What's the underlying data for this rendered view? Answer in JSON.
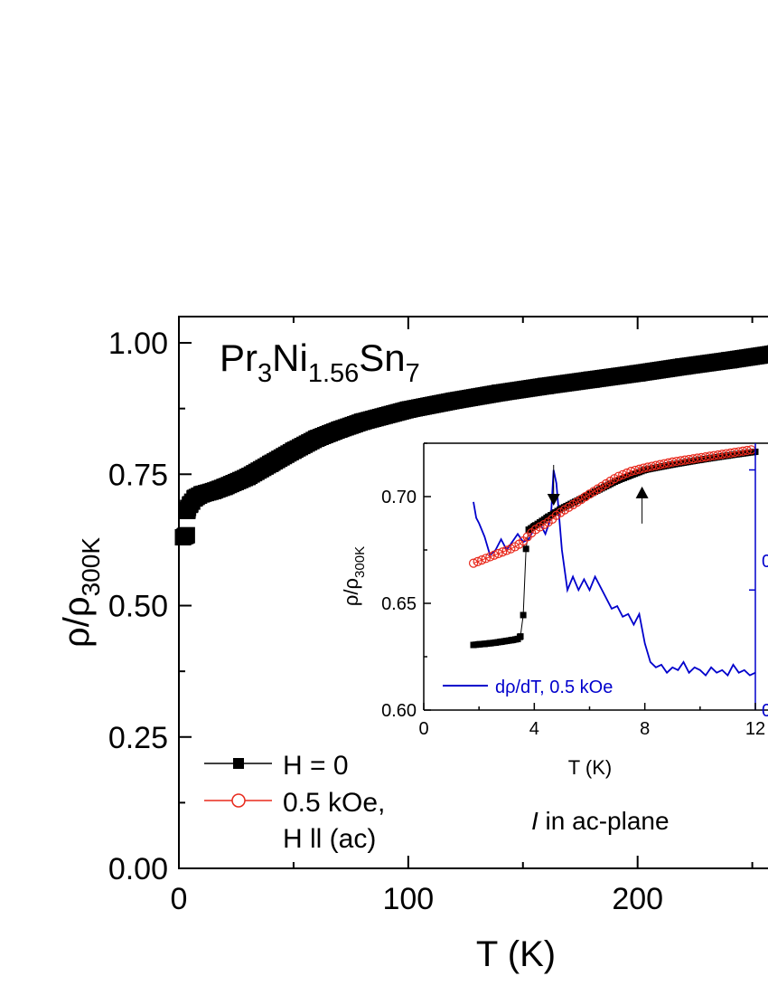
{
  "chart_data": [
    {
      "type": "scatter",
      "title": "Pr3Ni1.56Sn7",
      "title_parts": {
        "base1": "Pr",
        "sub1": "3",
        "base2": "Ni",
        "sub2": "1.56",
        "base3": "Sn",
        "sub3": "7"
      },
      "xlabel": "T (K)",
      "ylabel": {
        "base": "ρ/ρ",
        "sub": "300K"
      },
      "xlim": [
        0,
        260
      ],
      "ylim": [
        0,
        1.05
      ],
      "x_ticks": [
        0,
        100,
        200
      ],
      "y_ticks": [
        "0.00",
        "0.25",
        "0.50",
        "0.75",
        "1.00"
      ],
      "grid": false,
      "legend": {
        "position": "bottom-left",
        "entries": [
          "H = 0",
          "0.5 kOe,",
          "H ll (ac)"
        ]
      },
      "annotation": {
        "italic": "I",
        "rest": " in ac-plane"
      },
      "series": [
        {
          "name": "H = 0",
          "color": "#000000",
          "marker": "square-filled",
          "x": [
            1.8,
            2.5,
            3.0,
            3.5,
            3.7,
            4.0,
            5.0,
            7.0,
            10,
            15,
            20,
            30,
            40,
            50,
            60,
            70,
            80,
            100,
            120,
            140,
            160,
            180,
            200,
            220,
            240,
            260
          ],
          "y": [
            0.63,
            0.632,
            0.633,
            0.634,
            0.68,
            0.686,
            0.693,
            0.705,
            0.712,
            0.718,
            0.726,
            0.745,
            0.77,
            0.795,
            0.818,
            0.835,
            0.85,
            0.873,
            0.89,
            0.905,
            0.918,
            0.93,
            0.942,
            0.955,
            0.967,
            0.98
          ]
        }
      ]
    },
    {
      "type": "line",
      "inset": true,
      "xlabel": "T (K)",
      "ylabel": {
        "base": "ρ/ρ",
        "sub": "300K"
      },
      "xlim": [
        0,
        12
      ],
      "ylim": [
        0.6,
        0.725
      ],
      "x_ticks": [
        0,
        4,
        8,
        12
      ],
      "y_ticks": [
        "0.60",
        "0.65",
        "0.70"
      ],
      "right_axis_color": "#0000cc",
      "right_tick_labels": [
        "0",
        "0"
      ],
      "series": [
        {
          "name": "H = 0",
          "color": "#000000",
          "marker": "square-filled",
          "x": [
            1.8,
            2.0,
            2.2,
            2.4,
            2.6,
            2.8,
            3.0,
            3.2,
            3.4,
            3.5,
            3.6,
            3.7,
            3.8,
            4.0,
            4.5,
            5.0,
            6.0,
            7.0,
            8.0,
            9.0,
            10.0,
            11.0,
            12.0
          ],
          "y": [
            0.6305,
            0.6308,
            0.631,
            0.6313,
            0.6316,
            0.632,
            0.6324,
            0.6328,
            0.6333,
            0.6345,
            0.6445,
            0.6755,
            0.6845,
            0.6862,
            0.6905,
            0.6945,
            0.701,
            0.7075,
            0.7125,
            0.715,
            0.7172,
            0.7192,
            0.721
          ]
        },
        {
          "name": "0.5 kOe, H ll (ac)",
          "color": "#e8291c",
          "marker": "circle-open",
          "x": [
            1.8,
            2.0,
            2.2,
            2.4,
            2.6,
            2.8,
            3.0,
            3.2,
            3.4,
            3.6,
            3.8,
            4.0,
            4.2,
            4.4,
            4.6,
            4.8,
            5.0,
            5.5,
            6.0,
            6.5,
            7.0,
            7.5,
            8.0,
            9.0,
            10.0,
            11.0,
            12.0
          ],
          "y": [
            0.6688,
            0.6698,
            0.6708,
            0.6718,
            0.6728,
            0.6738,
            0.6748,
            0.6758,
            0.6772,
            0.6792,
            0.6818,
            0.6842,
            0.6858,
            0.6872,
            0.6888,
            0.6912,
            0.693,
            0.697,
            0.7012,
            0.7052,
            0.7092,
            0.7118,
            0.7135,
            0.7162,
            0.7182,
            0.7202,
            0.7222
          ]
        },
        {
          "name": "dρ/dT, 0.5 kOe",
          "color": "#0000cc",
          "axis": "right",
          "x": [
            1.8,
            1.9,
            2.0,
            2.2,
            2.4,
            2.6,
            2.8,
            3.0,
            3.2,
            3.4,
            3.6,
            3.8,
            4.0,
            4.2,
            4.4,
            4.6,
            4.7,
            4.8,
            5.0,
            5.2,
            5.4,
            5.6,
            5.8,
            6.0,
            6.2,
            6.5,
            6.8,
            7.0,
            7.2,
            7.4,
            7.6,
            7.8,
            8.0,
            8.2,
            8.4,
            8.6,
            8.8,
            9.0,
            9.2,
            9.4,
            9.6,
            9.8,
            10.0,
            10.2,
            10.4,
            10.6,
            10.8,
            11.0,
            11.2,
            11.4,
            11.6,
            11.8,
            12.0
          ],
          "y": [
            0.78,
            0.72,
            0.7,
            0.65,
            0.58,
            0.6,
            0.64,
            0.6,
            0.63,
            0.66,
            0.63,
            0.64,
            0.68,
            0.7,
            0.66,
            0.72,
            0.9,
            0.85,
            0.6,
            0.45,
            0.5,
            0.45,
            0.49,
            0.45,
            0.5,
            0.44,
            0.38,
            0.39,
            0.35,
            0.36,
            0.32,
            0.36,
            0.25,
            0.18,
            0.16,
            0.17,
            0.14,
            0.16,
            0.15,
            0.18,
            0.14,
            0.16,
            0.15,
            0.13,
            0.16,
            0.14,
            0.15,
            0.13,
            0.17,
            0.14,
            0.15,
            0.13,
            0.14
          ]
        }
      ],
      "legend": {
        "entries": [
          "dρ/dT, 0.5 kOe"
        ],
        "position": "bottom-left"
      },
      "arrows": [
        {
          "x": 4.7,
          "direction": "down",
          "y_tip": 0.6945
        },
        {
          "x": 7.9,
          "direction": "up",
          "y_tip": 0.706
        }
      ]
    }
  ]
}
